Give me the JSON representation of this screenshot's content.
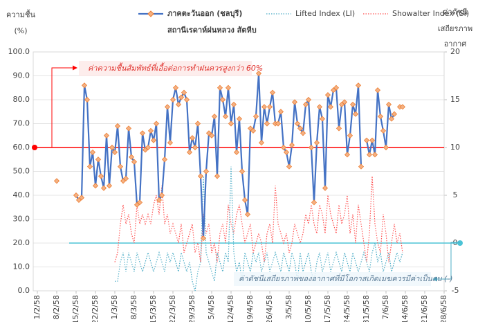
{
  "chart_data": {
    "type": "line",
    "y_label_lines": [
      "ความชื้น",
      "(%)"
    ],
    "y2_label_lines": [
      "ค่าดัชนี",
      "เสถียรภาพ",
      "อากาศ"
    ],
    "legend_note": "สถานีเรดาห์ฝนหลวง สัตหีบ",
    "grid": true,
    "xlim": [
      -1.5,
      147
    ],
    "xticks": [
      {
        "value": 0,
        "label": "1/2/58"
      },
      {
        "value": 7,
        "label": "8/2/58"
      },
      {
        "value": 14,
        "label": "15/2/58"
      },
      {
        "value": 21,
        "label": "22/2/58"
      },
      {
        "value": 28,
        "label": "1/3/58"
      },
      {
        "value": 35,
        "label": "8/3/58"
      },
      {
        "value": 42,
        "label": "15/3/58"
      },
      {
        "value": 49,
        "label": "22/3/58"
      },
      {
        "value": 56,
        "label": "29/3/58"
      },
      {
        "value": 63,
        "label": "5/4/58"
      },
      {
        "value": 70,
        "label": "12/4/58"
      },
      {
        "value": 77,
        "label": "19/4/58"
      },
      {
        "value": 84,
        "label": "26/4/58"
      },
      {
        "value": 91,
        "label": "3/5/58"
      },
      {
        "value": 98,
        "label": "10/5/58"
      },
      {
        "value": 105,
        "label": "17/5/58"
      },
      {
        "value": 112,
        "label": "24/5/58"
      },
      {
        "value": 119,
        "label": "31/5/58"
      },
      {
        "value": 126,
        "label": "7/6/58"
      },
      {
        "value": 133,
        "label": "14/6/58"
      },
      {
        "value": 140,
        "label": "21/6/58"
      },
      {
        "value": 147,
        "label": "28/6/58"
      }
    ],
    "ylim": [
      0,
      100
    ],
    "yticks": [
      {
        "value": 0,
        "label": "0.0"
      },
      {
        "value": 10,
        "label": "10.0"
      },
      {
        "value": 20,
        "label": "20.0"
      },
      {
        "value": 30,
        "label": "30.0"
      },
      {
        "value": 40,
        "label": "40.0"
      },
      {
        "value": 50,
        "label": "50.0"
      },
      {
        "value": 60,
        "label": "60.0"
      },
      {
        "value": 70,
        "label": "70.0"
      },
      {
        "value": 80,
        "label": "80.0"
      },
      {
        "value": 90,
        "label": "90.0"
      },
      {
        "value": 100,
        "label": "100.0"
      }
    ],
    "y2lim": [
      -5,
      20
    ],
    "y2ticks": [
      -5,
      0,
      5,
      10,
      15,
      20
    ],
    "x": [
      0,
      1,
      2,
      3,
      4,
      5,
      6,
      7,
      8,
      9,
      10,
      11,
      12,
      13,
      14,
      15,
      16,
      17,
      18,
      19,
      20,
      21,
      22,
      23,
      24,
      25,
      26,
      27,
      28,
      29,
      30,
      31,
      32,
      33,
      34,
      35,
      36,
      37,
      38,
      39,
      40,
      41,
      42,
      43,
      44,
      45,
      46,
      47,
      48,
      49,
      50,
      51,
      52,
      53,
      54,
      55,
      56,
      57,
      58,
      59,
      60,
      61,
      62,
      63,
      64,
      65,
      66,
      67,
      68,
      69,
      70,
      71,
      72,
      73,
      74,
      75,
      76,
      77,
      78,
      79,
      80,
      81,
      82,
      83,
      84,
      85,
      86,
      87,
      88,
      89,
      90,
      91,
      92,
      93,
      94,
      95,
      96,
      97,
      98,
      99,
      100,
      101,
      102,
      103,
      104,
      105,
      106,
      107,
      108,
      109,
      110,
      111,
      112,
      113,
      114,
      115,
      116,
      117,
      118,
      119,
      120,
      121,
      122,
      123,
      124,
      125,
      126,
      127,
      128,
      129,
      130,
      131,
      132
    ],
    "series": [
      {
        "name": "ภาคตะวันออก (ชลบุรี)",
        "color": "#4472c4",
        "marker_color": "#f4b183",
        "marker_edge": "#ed7d31",
        "line_style": "solid",
        "marker": "diamond",
        "values": [
          null,
          null,
          null,
          null,
          null,
          null,
          null,
          46,
          null,
          null,
          null,
          null,
          null,
          null,
          40,
          38,
          39,
          86,
          80,
          52,
          58,
          44,
          55,
          48,
          43,
          65,
          44,
          60,
          58,
          69,
          52,
          46,
          47,
          68,
          56,
          54,
          36,
          37,
          66,
          59,
          60,
          67,
          63,
          70,
          38,
          40,
          55,
          77,
          62,
          80,
          85,
          78,
          81,
          83,
          80,
          58,
          64,
          60,
          70,
          48,
          22,
          50,
          66,
          65,
          73,
          48,
          85,
          80,
          73,
          85,
          70,
          78,
          58,
          72,
          50,
          38,
          32,
          68,
          67,
          73,
          91,
          62,
          77,
          70,
          77,
          83,
          70,
          70,
          75,
          60,
          58,
          52,
          61,
          79,
          70,
          68,
          66,
          78,
          80,
          60,
          37,
          62,
          77,
          72,
          43,
          82,
          77,
          84,
          85,
          68,
          78,
          79,
          57,
          65,
          78,
          74,
          86,
          52,
          null,
          63,
          57,
          63,
          57,
          84,
          73,
          67,
          60,
          78,
          72,
          74,
          null,
          77,
          77
        ]
      },
      {
        "name": "Lifted Index (LI)",
        "color": "#4bacc6",
        "line_style": "dotted",
        "axis": "y2",
        "values": [
          null,
          null,
          null,
          null,
          null,
          null,
          null,
          null,
          null,
          null,
          null,
          null,
          null,
          null,
          null,
          null,
          null,
          null,
          null,
          null,
          null,
          null,
          null,
          null,
          null,
          null,
          null,
          null,
          -4,
          -4,
          -2,
          -1,
          -3,
          -1,
          -2,
          -3,
          -1,
          -2,
          -3,
          -2,
          -1,
          -2,
          -3,
          -2,
          -1,
          -2,
          -3,
          -1,
          -2,
          -1,
          -2,
          -3,
          -1,
          -2,
          -3,
          -2,
          -4,
          -5,
          -3,
          -2,
          7,
          -1,
          -2,
          -3,
          -4,
          -1,
          -2,
          -3,
          -1,
          -2,
          8,
          -1,
          -3,
          -2,
          -4,
          -1,
          -2,
          -3,
          -1,
          -2,
          -1,
          -3,
          -2,
          -1,
          -3,
          -2,
          -1,
          -2,
          -3,
          -1,
          -2,
          -3,
          -1,
          -2,
          -4,
          -1,
          -3,
          -2,
          -1,
          -3,
          -4,
          -2,
          -1,
          -3,
          -2,
          -1,
          -3,
          -2,
          -1,
          -2,
          -3,
          -1,
          -2,
          -3,
          -1,
          -2,
          -3,
          -2,
          -1,
          -2,
          -3,
          -1,
          0,
          -2,
          -1,
          -3,
          -2,
          -1,
          -3,
          -2,
          -1,
          -2,
          -1
        ]
      },
      {
        "name": "Showalter Index (SI)",
        "color": "#ff5050",
        "line_style": "dotted",
        "axis": "y2",
        "values": [
          null,
          null,
          null,
          null,
          null,
          null,
          null,
          null,
          null,
          null,
          null,
          null,
          null,
          null,
          null,
          null,
          null,
          null,
          null,
          null,
          null,
          null,
          null,
          null,
          null,
          null,
          null,
          null,
          -2,
          -1,
          2,
          4,
          2,
          3,
          1,
          0,
          4,
          2,
          3,
          2,
          3,
          2,
          4,
          5,
          3,
          6,
          2,
          3,
          1,
          2,
          1,
          0,
          2,
          -1,
          0,
          1,
          2,
          -1,
          0,
          -2,
          3,
          1,
          2,
          -1,
          0,
          -2,
          1,
          2,
          0,
          4,
          2,
          1,
          3,
          4,
          2,
          0,
          1,
          2,
          -1,
          0,
          1,
          0,
          -2,
          1,
          2,
          0,
          6,
          2,
          1,
          0,
          1,
          -1,
          0,
          2,
          1,
          0,
          1,
          3,
          2,
          4,
          2,
          1,
          4,
          3,
          1,
          5,
          3,
          2,
          1,
          4,
          2,
          3,
          5,
          1,
          3,
          0,
          4,
          2,
          0,
          -2,
          1,
          7,
          2,
          0,
          -1,
          3,
          1,
          -2,
          0,
          2,
          0,
          1,
          -1
        ]
      }
    ],
    "threshold_lines": [
      {
        "value": 60,
        "axis": "y",
        "color": "#ff0000"
      },
      {
        "value": 0,
        "axis": "y2",
        "color": "#4bc3d6"
      }
    ],
    "annotations": [
      "ค่าความชื้นสัมพัทธ์ที่เอื้อต่อการทำฝนควรสูงกว่า 60%",
      "ค่าดัชนีเสถียรภาพของอากาศที่มีโอกาสเกิดเมฆควรมีค่าเป็นลบ (-)"
    ]
  }
}
